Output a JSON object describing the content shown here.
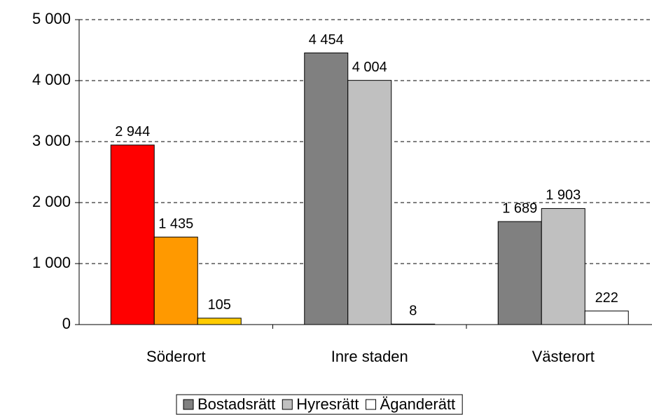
{
  "chart_data": {
    "type": "bar",
    "categories": [
      "Söderort",
      "Inre staden",
      "Västerort"
    ],
    "series": [
      {
        "name": "Bostadsrätt",
        "color": "#808080",
        "colors": [
          "#ff0000",
          "#808080",
          "#808080"
        ],
        "values": [
          2944,
          4454,
          1689
        ],
        "value_labels": [
          "2 944",
          "4 454",
          "1 689"
        ]
      },
      {
        "name": "Hyresrätt",
        "color": "#c0c0c0",
        "colors": [
          "#ff9900",
          "#c0c0c0",
          "#c0c0c0"
        ],
        "values": [
          1435,
          4004,
          1903
        ],
        "value_labels": [
          "1 435",
          "4 004",
          "1 903"
        ]
      },
      {
        "name": "Äganderätt",
        "color": "#ffffff",
        "colors": [
          "#ffcc00",
          "#ffffff",
          "#ffffff"
        ],
        "values": [
          105,
          8,
          222
        ]
      }
    ],
    "ylim": [
      0,
      5000
    ],
    "yticks": [
      0,
      {
        "value": 1000,
        "label": "1 000"
      },
      {
        "value": 2000,
        "label": "2 000"
      },
      {
        "value": 3000,
        "label": "3 000"
      },
      {
        "value": 4000,
        "label": "4 000"
      },
      {
        "value": 5000,
        "label": "5 000"
      }
    ],
    "grid": true,
    "legend": "bottom"
  }
}
